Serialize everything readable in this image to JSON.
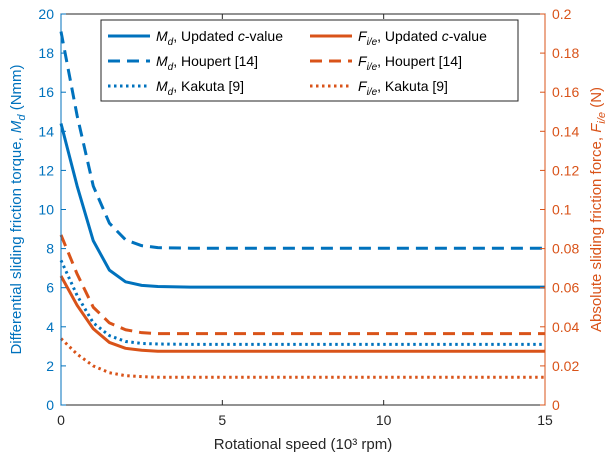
{
  "colors": {
    "left_axis": "#0072BD",
    "right_axis": "#D95319",
    "frame": "#262626"
  },
  "chart_data": {
    "type": "line",
    "xlabel": "Rotational speed (10³ rpm)",
    "ylabel_left": "Differential sliding friction torque,",
    "ylabel_left_symbol": "M",
    "ylabel_left_sub": "d",
    "ylabel_left_unit": "(Nmm)",
    "ylabel_right": "Absolute sliding friction force,",
    "ylabel_right_symbol": "F",
    "ylabel_right_sub": "i/e",
    "ylabel_right_unit": "(N)",
    "xlim": [
      0,
      15
    ],
    "ylim_left": [
      0,
      20
    ],
    "ylim_right": [
      0,
      0.2
    ],
    "x_ticks": [
      "0",
      "5",
      "10",
      "15"
    ],
    "y_left_ticks": [
      "0",
      "2",
      "4",
      "6",
      "8",
      "10",
      "12",
      "14",
      "16",
      "18",
      "20"
    ],
    "y_right_ticks": [
      "0",
      "0.02",
      "0.04",
      "0.06",
      "0.08",
      "0.1",
      "0.12",
      "0.14",
      "0.16",
      "0.18",
      "0.2"
    ],
    "legend_position": "top",
    "x": [
      0,
      0.5,
      1,
      1.5,
      2,
      2.5,
      3,
      4,
      5,
      10,
      15
    ],
    "series": [
      {
        "name_symbol": "M",
        "name_sub": "d",
        "name_suffix": ", Updated ",
        "name_italic": "c",
        "name_tail": "-value",
        "axis": "left",
        "color": "#0072BD",
        "dash": "solid",
        "values": [
          14.4,
          11.2,
          8.4,
          6.9,
          6.3,
          6.12,
          6.06,
          6.03,
          6.03,
          6.03,
          6.03
        ]
      },
      {
        "name_symbol": "M",
        "name_sub": "d",
        "name_suffix": ", Houpert [14]",
        "axis": "left",
        "color": "#0072BD",
        "dash": "dashed",
        "values": [
          19.1,
          14.8,
          11.2,
          9.3,
          8.45,
          8.15,
          8.05,
          8.02,
          8.02,
          8.02,
          8.02
        ]
      },
      {
        "name_symbol": "M",
        "name_sub": "d",
        "name_suffix": ", Kakuta [9]",
        "axis": "left",
        "color": "#0072BD",
        "dash": "dotted",
        "values": [
          7.4,
          5.6,
          4.2,
          3.55,
          3.25,
          3.15,
          3.12,
          3.1,
          3.1,
          3.1,
          3.1
        ]
      },
      {
        "name_symbol": "F",
        "name_sub": "i/e",
        "name_suffix": ", Updated ",
        "name_italic": "c",
        "name_tail": "-value",
        "axis": "right",
        "color": "#D95319",
        "dash": "solid",
        "values": [
          0.066,
          0.051,
          0.039,
          0.032,
          0.029,
          0.028,
          0.0275,
          0.0275,
          0.0275,
          0.0275,
          0.0275
        ]
      },
      {
        "name_symbol": "F",
        "name_sub": "i/e",
        "name_suffix": ", Houpert [14]",
        "axis": "right",
        "color": "#D95319",
        "dash": "dashed",
        "values": [
          0.087,
          0.067,
          0.05,
          0.042,
          0.0385,
          0.037,
          0.0365,
          0.0365,
          0.0365,
          0.0365,
          0.0365
        ]
      },
      {
        "name_symbol": "F",
        "name_sub": "i/e",
        "name_suffix": ", Kakuta [9]",
        "axis": "right",
        "color": "#D95319",
        "dash": "dotted",
        "values": [
          0.034,
          0.026,
          0.02,
          0.0165,
          0.015,
          0.0145,
          0.0142,
          0.0142,
          0.0142,
          0.0142,
          0.0142
        ]
      }
    ]
  }
}
